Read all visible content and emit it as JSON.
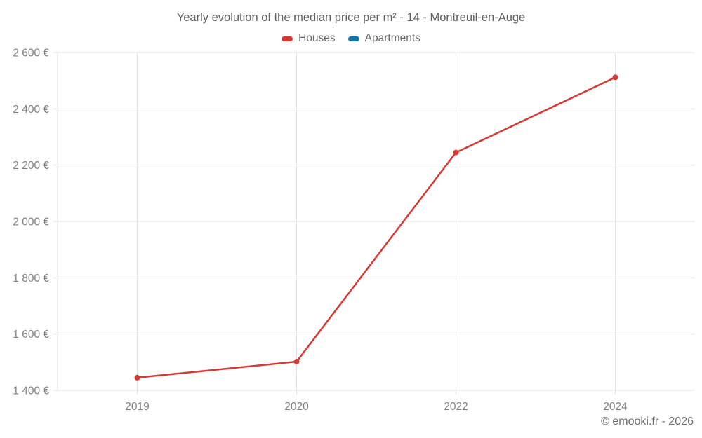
{
  "title": "Yearly evolution of the median price per m² - 14 - Montreuil-en-Auge",
  "copyright": "© emooki.fr - 2026",
  "colors": {
    "houses": "#d93832",
    "apartments": "#1274a5",
    "grid": "#e3e3e3",
    "axis_text": "#808184",
    "title_text": "#5f6062"
  },
  "chart_data": {
    "type": "line",
    "title": "Yearly evolution of the median price per m² - 14 - Montreuil-en-Auge",
    "categories": [
      "2019",
      "2020",
      "2022",
      "2024"
    ],
    "series": [
      {
        "name": "Houses",
        "color": "#d93832",
        "values": [
          1445,
          1502,
          2245,
          2512
        ]
      },
      {
        "name": "Apartments",
        "color": "#1274a5",
        "values": []
      }
    ],
    "xlabel": "",
    "ylabel": "",
    "ylim": [
      1400,
      2600
    ],
    "ytick_step": 200,
    "ytick_labels": [
      "1 400 €",
      "1 600 €",
      "1 800 €",
      "2 000 €",
      "2 200 €",
      "2 400 €",
      "2 600 €"
    ],
    "grid": true,
    "legend_position": "top",
    "legend": [
      "Houses",
      "Apartments"
    ]
  }
}
